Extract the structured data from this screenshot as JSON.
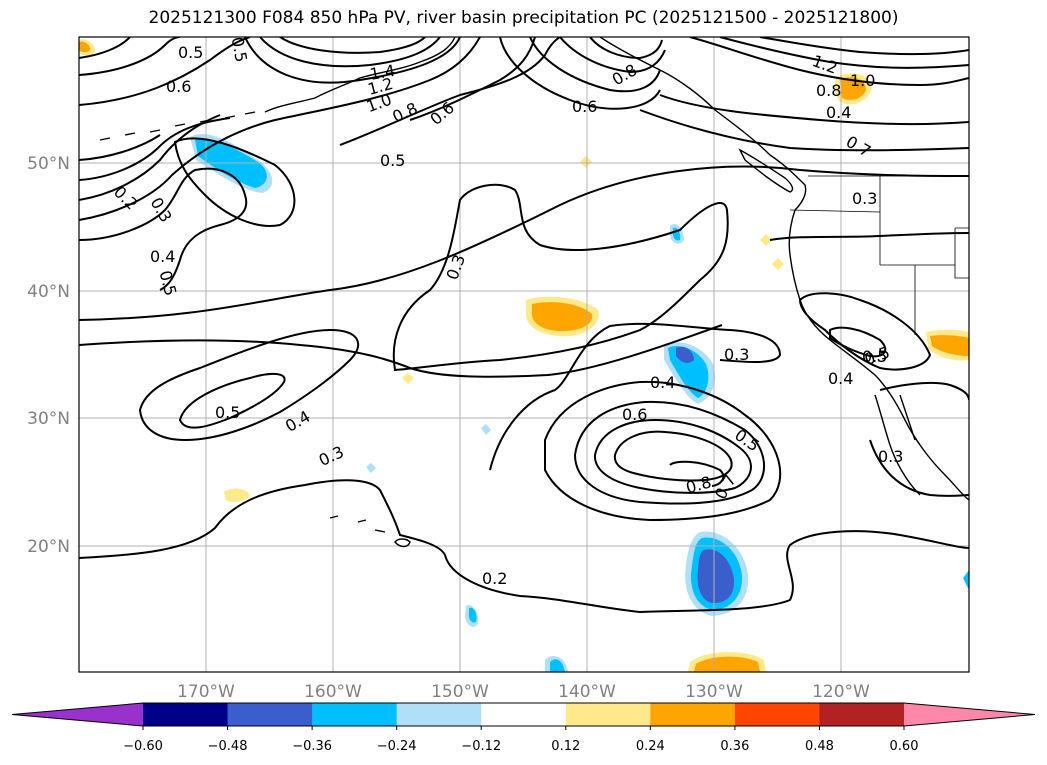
{
  "title": "2025121300 F084 850 hPa PV, river basin precipitation PC (2025121500 - 2025121800)",
  "map": {
    "lon_ticks": [
      "170°W",
      "160°W",
      "150°W",
      "140°W",
      "130°W",
      "120°W"
    ],
    "lat_ticks": [
      "50°N",
      "40°N",
      "30°N",
      "20°N"
    ],
    "contour_labels": [
      "0.5",
      "0.6",
      "0.5",
      "0.3",
      "0.2",
      "0.4",
      "0.5",
      "0.5",
      "0.4",
      "0.3",
      "0.3",
      "0.6",
      "0.5",
      "0.6",
      "0.8",
      "1.0",
      "1.2",
      "1.4",
      "0.8",
      "1.2",
      "1.0",
      "0.8",
      "0.4",
      "0.3",
      "0.3",
      "0.4",
      "0.5",
      "0.6",
      "0.5",
      "0.8",
      "0.7",
      "0.3",
      "0.2",
      "0.4",
      "0.5",
      "0.7"
    ]
  },
  "colorbar": {
    "colors": [
      "#9932cc",
      "#00008b",
      "#3a5fcd",
      "#00bfff",
      "#b0e0f8",
      "#ffffff",
      "#ffe98a",
      "#ffa500",
      "#ff4500",
      "#b22222",
      "#ff88aa"
    ],
    "tick_labels": [
      "−0.60",
      "−0.48",
      "−0.36",
      "−0.24",
      "−0.12",
      "0.12",
      "0.24",
      "0.36",
      "0.48",
      "0.60"
    ]
  },
  "field_colors": {
    "light_blue": "#b0e0f8",
    "blue": "#00bfff",
    "dark_blue": "#3a5fcd",
    "light_orange": "#ffe98a",
    "orange": "#ffa500"
  }
}
